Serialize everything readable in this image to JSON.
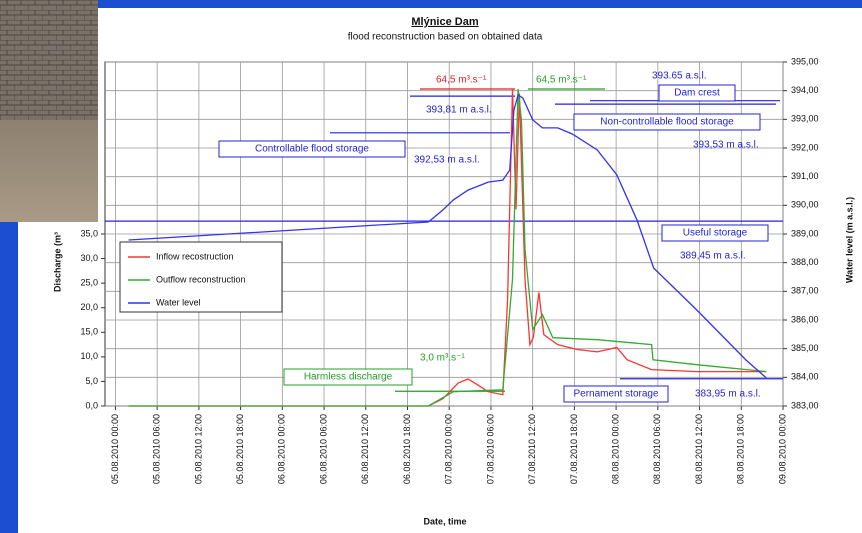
{
  "chart_data": {
    "type": "line",
    "title": "Mlýnice Dam",
    "subtitle": "flood reconstruction based on obtained data",
    "y_label": "Discharge (m³",
    "y2_label": "Water level (m a.s.l.)",
    "x_label": "Date, time",
    "xlim": [
      -1.5,
      96
    ],
    "xticks": [
      {
        "value": 0,
        "label": "05.08.2010 00:00"
      },
      {
        "value": 6,
        "label": "05.08.2010 06:00"
      },
      {
        "value": 12,
        "label": "05.08.2010 12:00"
      },
      {
        "value": 18,
        "label": "05.08.2010 18:00"
      },
      {
        "value": 24,
        "label": "06.08.2010 00:00"
      },
      {
        "value": 30,
        "label": "06.08.2010 06:00"
      },
      {
        "value": 36,
        "label": "06.08.2010 12:00"
      },
      {
        "value": 42,
        "label": "06.08.2010 18:00"
      },
      {
        "value": 48,
        "label": "07.08.2010 00:00"
      },
      {
        "value": 54,
        "label": "07.08.2010 06:00"
      },
      {
        "value": 60,
        "label": "07.08.2010 12:00"
      },
      {
        "value": 66,
        "label": "07.08.2010 18:00"
      },
      {
        "value": 72,
        "label": "08.08.2010 00:00"
      },
      {
        "value": 78,
        "label": "08.08.2010 06:00"
      },
      {
        "value": 84,
        "label": "08.08.2010 12:00"
      },
      {
        "value": 90,
        "label": "08.08.2010 18:00"
      },
      {
        "value": 96,
        "label": "09.08.2010 00:00"
      }
    ],
    "ylim": [
      0,
      70
    ],
    "yticks": [
      {
        "value": 0,
        "label": "0,0"
      },
      {
        "value": 5,
        "label": "5,0"
      },
      {
        "value": 10,
        "label": "10,0"
      },
      {
        "value": 15,
        "label": "15,0"
      },
      {
        "value": 20,
        "label": "20,0"
      },
      {
        "value": 25,
        "label": "25,0"
      },
      {
        "value": 30,
        "label": "30,0"
      },
      {
        "value": 35,
        "label": "35,0"
      }
    ],
    "y2lim": [
      383,
      395
    ],
    "y2ticks": [
      {
        "value": 383,
        "label": "383,00"
      },
      {
        "value": 384,
        "label": "384,00"
      },
      {
        "value": 385,
        "label": "385,00"
      },
      {
        "value": 386,
        "label": "386,00"
      },
      {
        "value": 387,
        "label": "387,00"
      },
      {
        "value": 388,
        "label": "388,00"
      },
      {
        "value": 389,
        "label": "389,00"
      },
      {
        "value": 390,
        "label": "390,00"
      },
      {
        "value": 391,
        "label": "391,00"
      },
      {
        "value": 392,
        "label": "392,00"
      },
      {
        "value": 393,
        "label": "393,00"
      },
      {
        "value": 394,
        "label": "394,00"
      },
      {
        "value": 395,
        "label": "395,00"
      }
    ],
    "grid": true,
    "series": [
      {
        "name": "Inflow recostruction",
        "color": "#ff3333",
        "x": [
          1.9,
          45.0,
          47.1,
          49.3,
          50.7,
          52.1,
          53.6,
          55.7,
          56.4,
          57.1,
          57.6,
          58.1,
          58.9,
          59.6,
          60.1,
          60.9,
          61.6,
          63.6,
          66.4,
          69.3,
          72.1,
          73.6,
          77.1,
          83.6,
          93.6
        ],
        "values": [
          0,
          0,
          1.5,
          4.7,
          5.5,
          4.3,
          2.9,
          2.3,
          21.7,
          64.5,
          40,
          63.6,
          25.8,
          12.5,
          14.0,
          23.1,
          14.5,
          12.5,
          11.5,
          11.0,
          11.9,
          9.4,
          7.4,
          7.0,
          7.0
        ]
      },
      {
        "name": "Outflow reconstruction",
        "color": "#33aa33",
        "x": [
          1.9,
          45.0,
          48.6,
          55.7,
          57.1,
          57.9,
          58.4,
          58.9,
          60.0,
          61.4,
          62.9,
          69.3,
          77.1,
          77.3,
          83.6,
          93.6
        ],
        "values": [
          0,
          0,
          2.9,
          3.3,
          25.8,
          64.5,
          58,
          31.9,
          15.6,
          18.6,
          13.9,
          13.5,
          12.5,
          9.4,
          8.4,
          7.0
        ]
      },
      {
        "name": "Water level",
        "color": "#3333ee",
        "axis": "y2",
        "x": [
          1.9,
          45.0,
          47.1,
          48.6,
          50.7,
          53.6,
          55.7,
          56.7,
          57.3,
          57.9,
          58.6,
          60.0,
          61.4,
          63.6,
          65.7,
          69.3,
          72.1,
          75.0,
          77.4,
          83.6,
          90.7,
          93.6
        ],
        "values": [
          388.79,
          389.42,
          389.84,
          390.19,
          390.53,
          390.81,
          390.88,
          391.23,
          393.32,
          393.85,
          393.74,
          392.98,
          392.7,
          392.7,
          392.49,
          391.93,
          391.06,
          389.49,
          387.81,
          386.35,
          384.6,
          383.98
        ]
      }
    ],
    "annotations": [
      {
        "text": "64,5 m³.s⁻¹",
        "value": 64.5
      },
      {
        "text": "64,5 m³.s⁻¹",
        "value": 64.5
      },
      {
        "text": "393.65 a.s.l.",
        "value": 393.65
      },
      {
        "text": "Dam crest"
      },
      {
        "text": "393,81  m a.s.l.",
        "value": 393.81
      },
      {
        "text": "Non-controllable flood storage"
      },
      {
        "text": "393,53 m a.s.l.",
        "value": 393.53
      },
      {
        "text": "Controllable flood storage"
      },
      {
        "text": "392,53 m a.s.l.",
        "value": 392.53
      },
      {
        "text": "Useful storage"
      },
      {
        "text": "389,45 m a.s.l.",
        "value": 389.45
      },
      {
        "text": "Harmless discharge"
      },
      {
        "text": "3,0 m³.s⁻¹",
        "value": 3.0
      },
      {
        "text": "Pernament storage"
      },
      {
        "text": "383,95 m a.s.l.",
        "value": 383.95
      }
    ]
  }
}
